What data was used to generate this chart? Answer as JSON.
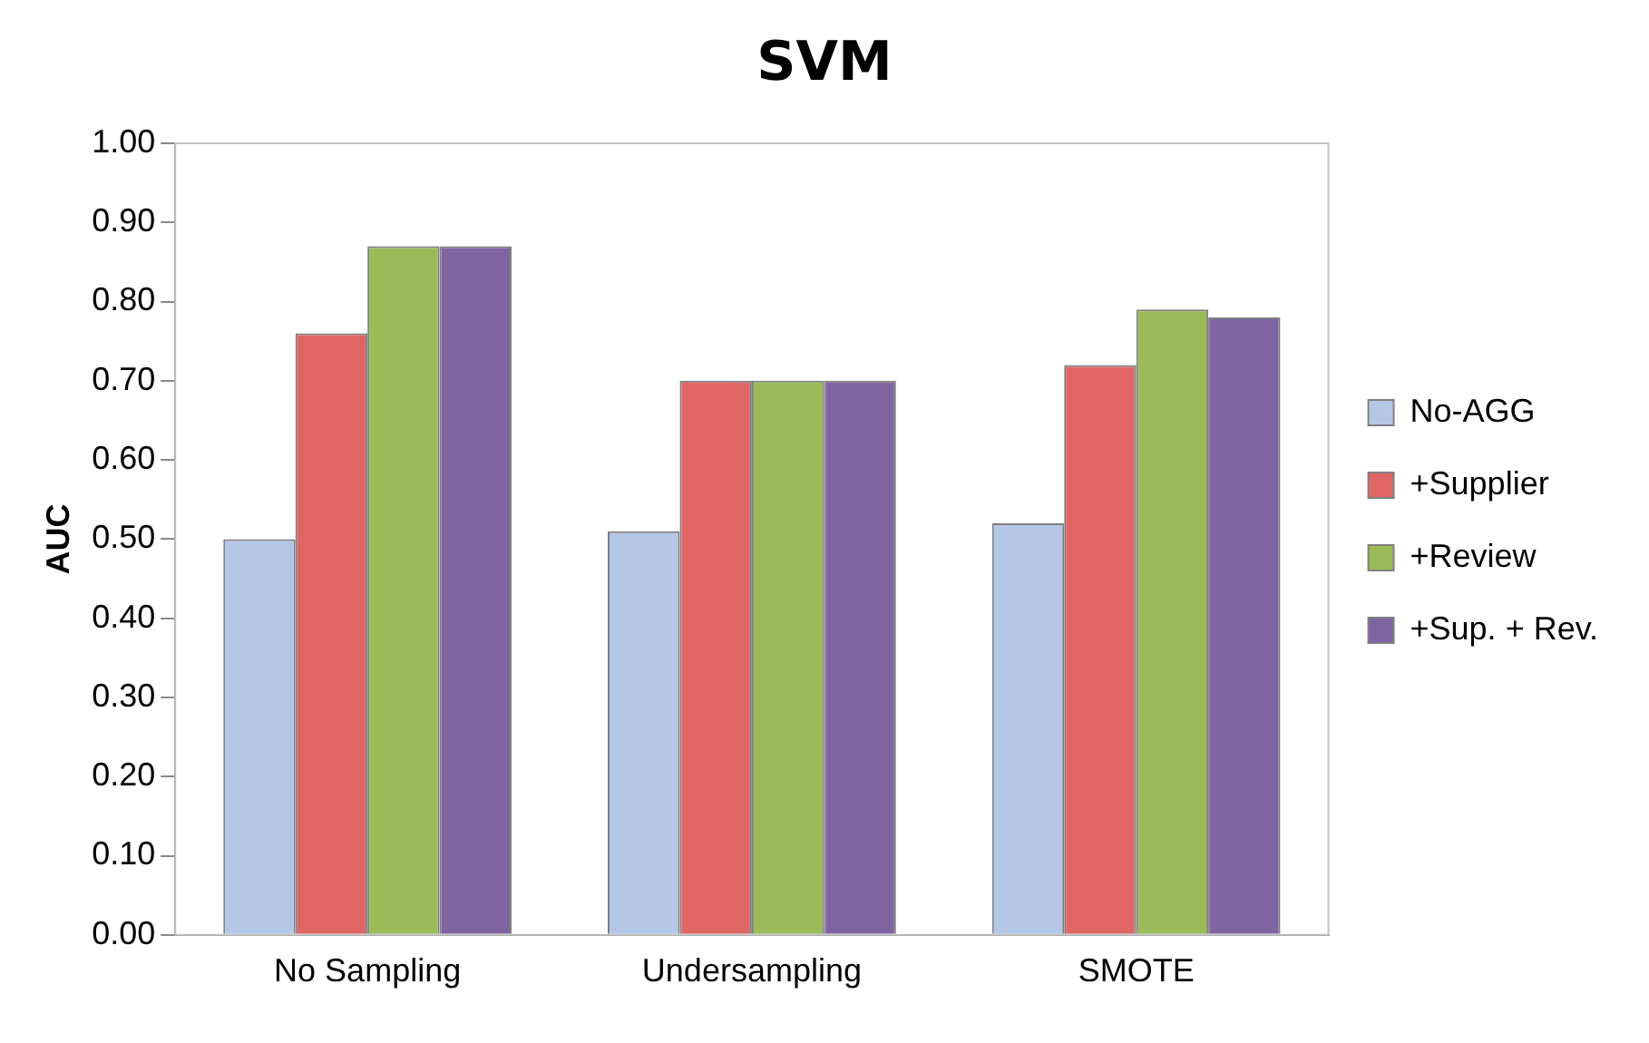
{
  "chart_data": {
    "type": "bar",
    "title": "SVM",
    "ylabel": "AUC",
    "categories": [
      "No Sampling",
      "Undersampling",
      "SMOTE"
    ],
    "series": [
      {
        "name": "No-AGG",
        "color": "#b4c7e7",
        "values": [
          0.5,
          0.51,
          0.52
        ]
      },
      {
        "name": "+Supplier",
        "color": "#e06666",
        "values": [
          0.76,
          0.7,
          0.72
        ]
      },
      {
        "name": "+Review",
        "color": "#9bbb59",
        "values": [
          0.87,
          0.7,
          0.79
        ]
      },
      {
        "name": "+Sup. + Rev.",
        "color": "#8064a2",
        "values": [
          0.87,
          0.7,
          0.78
        ]
      }
    ],
    "ylim": [
      0,
      1
    ],
    "yticks": [
      {
        "value": 0,
        "label": "0.00"
      },
      {
        "value": 0.1,
        "label": "0.10"
      },
      {
        "value": 0.2,
        "label": "0.20"
      },
      {
        "value": 0.3,
        "label": "0.30"
      },
      {
        "value": 0.4,
        "label": "0.40"
      },
      {
        "value": 0.5,
        "label": "0.50"
      },
      {
        "value": 0.6,
        "label": "0.60"
      },
      {
        "value": 0.7,
        "label": "0.70"
      },
      {
        "value": 0.8,
        "label": "0.80"
      },
      {
        "value": 0.9,
        "label": "0.90"
      },
      {
        "value": 1,
        "label": "1.00"
      }
    ],
    "grid": false,
    "legend": "right"
  }
}
